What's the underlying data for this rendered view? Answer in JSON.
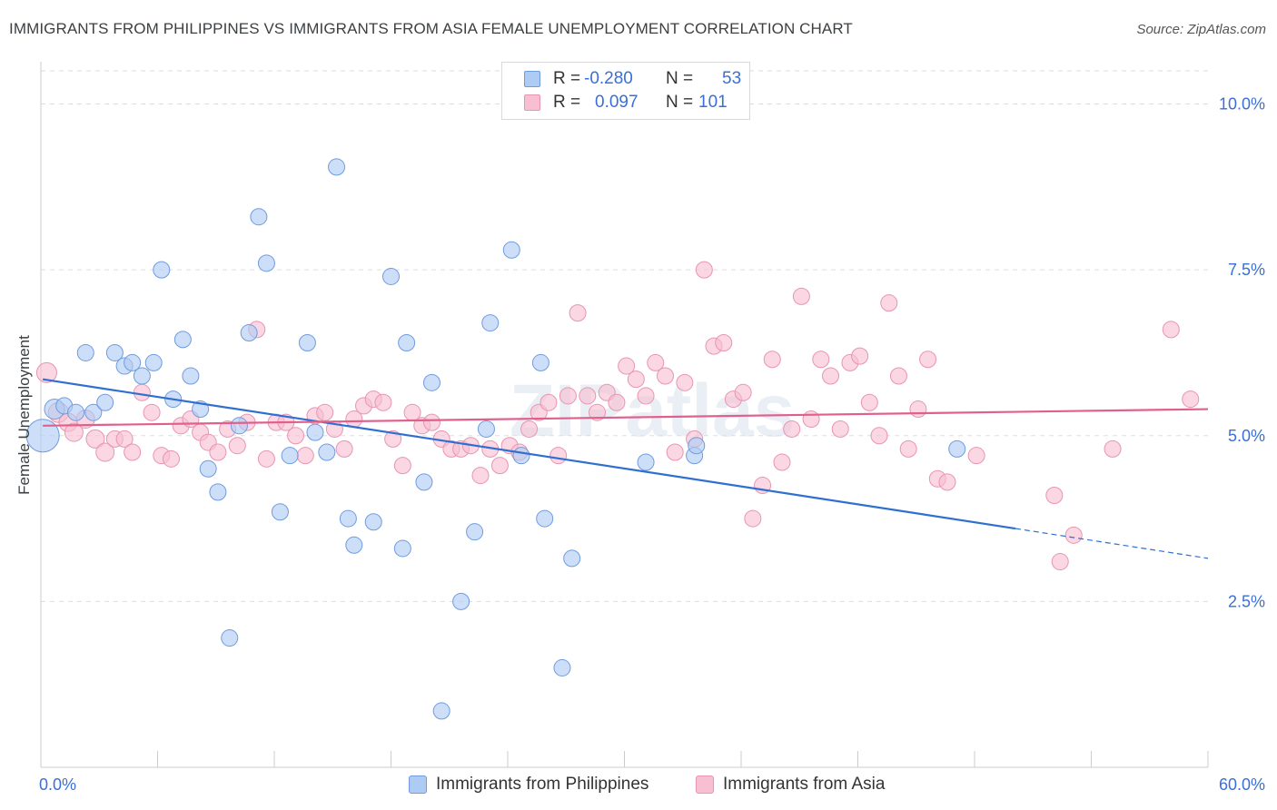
{
  "header": {
    "title": "IMMIGRANTS FROM PHILIPPINES VS IMMIGRANTS FROM ASIA FEMALE UNEMPLOYMENT CORRELATION CHART",
    "source": "Source: ZipAtlas.com"
  },
  "watermark": "ZIPatlas",
  "stats": {
    "rows": [
      {
        "r_label": "R =",
        "r_value": "-0.280",
        "n_label": "N =",
        "n_value": "53"
      },
      {
        "r_label": "R =",
        "r_value": "0.097",
        "n_label": "N =",
        "n_value": "101"
      }
    ]
  },
  "colors": {
    "philippines_fill": "#aecbf3",
    "philippines_stroke": "#6f9be0",
    "philippines_line": "#2f6fd1",
    "asia_fill": "#f7bfd1",
    "asia_stroke": "#e895b2",
    "asia_line": "#e0608d",
    "tick_label": "#3a6fd8",
    "grid": "#dddddd"
  },
  "chart_data": {
    "type": "scatter",
    "xlabel": "",
    "ylabel": "Female Unemployment",
    "xlim": [
      0,
      60
    ],
    "ylim": [
      0,
      10.5
    ],
    "x_tick_labels": [
      {
        "value": 0,
        "label": "0.0%"
      },
      {
        "value": 60,
        "label": "60.0%"
      }
    ],
    "y_tick_labels": [
      {
        "value": 2.5,
        "label": "2.5%"
      },
      {
        "value": 5.0,
        "label": "5.0%"
      },
      {
        "value": 7.5,
        "label": "7.5%"
      },
      {
        "value": 10.0,
        "label": "10.0%"
      }
    ],
    "grid": true,
    "legend_position": "bottom",
    "series": [
      {
        "name": "Immigrants from Philippines",
        "trend": {
          "x": [
            0.1,
            50.1
          ],
          "y": [
            5.85,
            3.6
          ],
          "dashed_to": [
            60.0,
            3.15
          ]
        },
        "points": [
          [
            0.1,
            5.0,
            18
          ],
          [
            0.7,
            5.4,
            11
          ],
          [
            1.2,
            5.45,
            9
          ],
          [
            1.8,
            5.35,
            9
          ],
          [
            2.3,
            6.25,
            9
          ],
          [
            2.7,
            5.35,
            9
          ],
          [
            3.3,
            5.5,
            9
          ],
          [
            3.8,
            6.25,
            9
          ],
          [
            4.3,
            6.05,
            9
          ],
          [
            4.7,
            6.1,
            9
          ],
          [
            5.2,
            5.9,
            9
          ],
          [
            5.8,
            6.1,
            9
          ],
          [
            6.2,
            7.5,
            9
          ],
          [
            6.8,
            5.55,
            9
          ],
          [
            7.3,
            6.45,
            9
          ],
          [
            7.7,
            5.9,
            9
          ],
          [
            8.2,
            5.4,
            9
          ],
          [
            8.6,
            4.5,
            9
          ],
          [
            9.1,
            4.15,
            9
          ],
          [
            9.7,
            1.95,
            9
          ],
          [
            10.2,
            5.15,
            9
          ],
          [
            10.7,
            6.55,
            9
          ],
          [
            11.2,
            8.3,
            9
          ],
          [
            11.6,
            7.6,
            9
          ],
          [
            12.3,
            3.85,
            9
          ],
          [
            12.8,
            4.7,
            9
          ],
          [
            13.7,
            6.4,
            9
          ],
          [
            14.1,
            5.05,
            9
          ],
          [
            14.7,
            4.75,
            9
          ],
          [
            15.2,
            9.05,
            9
          ],
          [
            15.8,
            3.75,
            9
          ],
          [
            16.1,
            3.35,
            9
          ],
          [
            17.1,
            3.7,
            9
          ],
          [
            18.0,
            7.4,
            9
          ],
          [
            18.6,
            3.3,
            9
          ],
          [
            18.8,
            6.4,
            9
          ],
          [
            19.7,
            4.3,
            9
          ],
          [
            20.1,
            5.8,
            9
          ],
          [
            20.6,
            0.85,
            9
          ],
          [
            21.6,
            2.5,
            9
          ],
          [
            22.3,
            3.55,
            9
          ],
          [
            22.9,
            5.1,
            9
          ],
          [
            23.1,
            6.7,
            9
          ],
          [
            24.2,
            7.8,
            9
          ],
          [
            24.7,
            4.7,
            9
          ],
          [
            25.7,
            6.1,
            9
          ],
          [
            25.9,
            3.75,
            9
          ],
          [
            26.8,
            1.5,
            9
          ],
          [
            27.3,
            3.15,
            9
          ],
          [
            31.1,
            4.6,
            9
          ],
          [
            33.6,
            4.7,
            9
          ],
          [
            33.7,
            4.85,
            9
          ],
          [
            47.1,
            4.8,
            9
          ]
        ]
      },
      {
        "name": "Immigrants from Asia",
        "trend": {
          "x": [
            0.1,
            60.0
          ],
          "y": [
            5.15,
            5.4
          ]
        },
        "points": [
          [
            0.3,
            5.95,
            11
          ],
          [
            0.9,
            5.35,
            11
          ],
          [
            1.4,
            5.2,
            10
          ],
          [
            1.7,
            5.05,
            10
          ],
          [
            2.3,
            5.25,
            10
          ],
          [
            2.8,
            4.95,
            10
          ],
          [
            3.3,
            4.75,
            10
          ],
          [
            3.8,
            4.95,
            9
          ],
          [
            4.3,
            4.95,
            9
          ],
          [
            4.7,
            4.75,
            9
          ],
          [
            5.2,
            5.65,
            9
          ],
          [
            5.7,
            5.35,
            9
          ],
          [
            6.2,
            4.7,
            9
          ],
          [
            6.7,
            4.65,
            9
          ],
          [
            7.2,
            5.15,
            9
          ],
          [
            7.7,
            5.25,
            9
          ],
          [
            8.2,
            5.05,
            9
          ],
          [
            8.6,
            4.9,
            9
          ],
          [
            9.1,
            4.75,
            9
          ],
          [
            9.6,
            5.1,
            9
          ],
          [
            10.1,
            4.85,
            9
          ],
          [
            10.6,
            5.2,
            9
          ],
          [
            11.1,
            6.6,
            9
          ],
          [
            11.6,
            4.65,
            9
          ],
          [
            12.1,
            5.2,
            9
          ],
          [
            12.6,
            5.2,
            9
          ],
          [
            13.1,
            5.0,
            9
          ],
          [
            13.6,
            4.7,
            9
          ],
          [
            14.1,
            5.3,
            9
          ],
          [
            14.6,
            5.35,
            9
          ],
          [
            15.1,
            5.1,
            9
          ],
          [
            15.6,
            4.8,
            9
          ],
          [
            16.1,
            5.25,
            9
          ],
          [
            16.6,
            5.45,
            9
          ],
          [
            17.1,
            5.55,
            9
          ],
          [
            17.6,
            5.5,
            9
          ],
          [
            18.1,
            4.95,
            9
          ],
          [
            18.6,
            4.55,
            9
          ],
          [
            19.1,
            5.35,
            9
          ],
          [
            19.6,
            5.15,
            9
          ],
          [
            20.1,
            5.2,
            9
          ],
          [
            20.6,
            4.95,
            9
          ],
          [
            21.1,
            4.8,
            9
          ],
          [
            21.6,
            4.8,
            9
          ],
          [
            22.1,
            4.85,
            9
          ],
          [
            22.6,
            4.4,
            9
          ],
          [
            23.1,
            4.8,
            9
          ],
          [
            23.6,
            4.55,
            9
          ],
          [
            24.1,
            4.85,
            9
          ],
          [
            24.6,
            4.75,
            9
          ],
          [
            25.1,
            5.1,
            9
          ],
          [
            25.6,
            5.35,
            9
          ],
          [
            26.1,
            5.5,
            9
          ],
          [
            26.6,
            4.7,
            9
          ],
          [
            27.1,
            5.6,
            9
          ],
          [
            27.6,
            6.85,
            9
          ],
          [
            28.1,
            5.6,
            9
          ],
          [
            28.6,
            5.35,
            9
          ],
          [
            29.1,
            5.65,
            9
          ],
          [
            29.6,
            5.5,
            9
          ],
          [
            30.1,
            6.05,
            9
          ],
          [
            30.6,
            5.85,
            9
          ],
          [
            31.1,
            5.6,
            9
          ],
          [
            31.6,
            6.1,
            9
          ],
          [
            32.1,
            5.9,
            9
          ],
          [
            32.6,
            4.75,
            9
          ],
          [
            33.1,
            5.8,
            9
          ],
          [
            33.6,
            4.95,
            9
          ],
          [
            34.1,
            7.5,
            9
          ],
          [
            34.6,
            6.35,
            9
          ],
          [
            35.1,
            6.4,
            9
          ],
          [
            35.6,
            5.55,
            9
          ],
          [
            36.1,
            5.65,
            9
          ],
          [
            36.6,
            3.75,
            9
          ],
          [
            37.1,
            4.25,
            9
          ],
          [
            37.6,
            6.15,
            9
          ],
          [
            38.1,
            4.6,
            9
          ],
          [
            38.6,
            5.1,
            9
          ],
          [
            39.1,
            7.1,
            9
          ],
          [
            39.6,
            5.25,
            9
          ],
          [
            40.1,
            6.15,
            9
          ],
          [
            40.6,
            5.9,
            9
          ],
          [
            41.1,
            5.1,
            9
          ],
          [
            41.6,
            6.1,
            9
          ],
          [
            42.1,
            6.2,
            9
          ],
          [
            42.6,
            5.5,
            9
          ],
          [
            43.1,
            5.0,
            9
          ],
          [
            43.6,
            7.0,
            9
          ],
          [
            44.1,
            5.9,
            9
          ],
          [
            44.6,
            4.8,
            9
          ],
          [
            45.1,
            5.4,
            9
          ],
          [
            45.6,
            6.15,
            9
          ],
          [
            46.1,
            4.35,
            9
          ],
          [
            46.6,
            4.3,
            9
          ],
          [
            48.1,
            4.7,
            9
          ],
          [
            52.1,
            4.1,
            9
          ],
          [
            52.4,
            3.1,
            9
          ],
          [
            53.1,
            3.5,
            9
          ],
          [
            55.1,
            4.8,
            9
          ],
          [
            58.1,
            6.6,
            9
          ],
          [
            59.1,
            5.55,
            9
          ]
        ]
      }
    ]
  }
}
